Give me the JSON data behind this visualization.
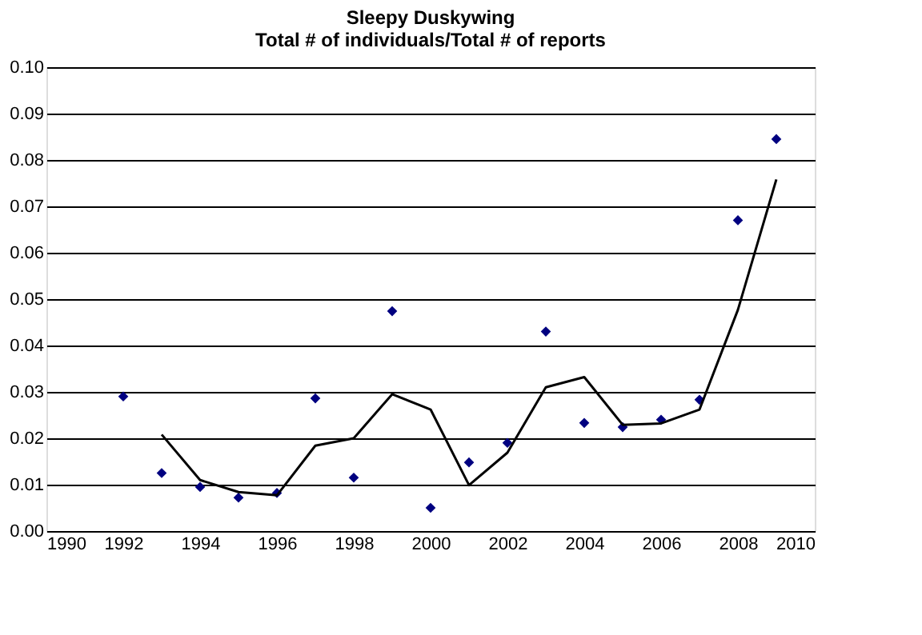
{
  "chart_data": {
    "type": "scatter",
    "title": [
      "Sleepy Duskywing",
      "Total # of individuals/Total # of reports"
    ],
    "xlim": [
      1990,
      2010
    ],
    "xticks": [
      1990,
      1992,
      1994,
      1996,
      1998,
      2000,
      2002,
      2004,
      2006,
      2008,
      2010
    ],
    "ylim": [
      0,
      0.1
    ],
    "yticks": [
      {
        "value": 0,
        "label": "0.00"
      },
      {
        "value": 0.01,
        "label": "0.01"
      },
      {
        "value": 0.02,
        "label": "0.02"
      },
      {
        "value": 0.03,
        "label": "0.03"
      },
      {
        "value": 0.04,
        "label": "0.04"
      },
      {
        "value": 0.05,
        "label": "0.05"
      },
      {
        "value": 0.06,
        "label": "0.06"
      },
      {
        "value": 0.07,
        "label": "0.07"
      },
      {
        "value": 0.08,
        "label": "0.08"
      },
      {
        "value": 0.09,
        "label": "0.09"
      },
      {
        "value": 0.1,
        "label": "0.10"
      }
    ],
    "grid": "y",
    "series": [
      {
        "marker": "diamond",
        "color": "#000080",
        "x": [
          1992,
          1993,
          1994,
          1995,
          1996,
          1997,
          1998,
          1999,
          2000,
          2001,
          2002,
          2003,
          2004,
          2005,
          2006,
          2007,
          2008,
          2009
        ],
        "values": [
          0.029,
          0.0125,
          0.0095,
          0.0072,
          0.0082,
          0.0286,
          0.0115,
          0.0474,
          0.005,
          0.0148,
          0.019,
          0.043,
          0.0233,
          0.0224,
          0.024,
          0.0283,
          0.067,
          0.0845
        ]
      },
      {
        "type": "line",
        "marker": "none",
        "color": "#000000",
        "x": [
          1993,
          1994,
          1995,
          1996,
          1997,
          1998,
          1999,
          2000,
          2001,
          2002,
          2003,
          2004,
          2005,
          2006,
          2007,
          2008,
          2009
        ],
        "values": [
          0.0208,
          0.011,
          0.0084,
          0.0077,
          0.0184,
          0.02,
          0.0295,
          0.0262,
          0.0099,
          0.0169,
          0.031,
          0.0332,
          0.0229,
          0.0232,
          0.0262,
          0.0477,
          0.0758
        ]
      }
    ]
  }
}
